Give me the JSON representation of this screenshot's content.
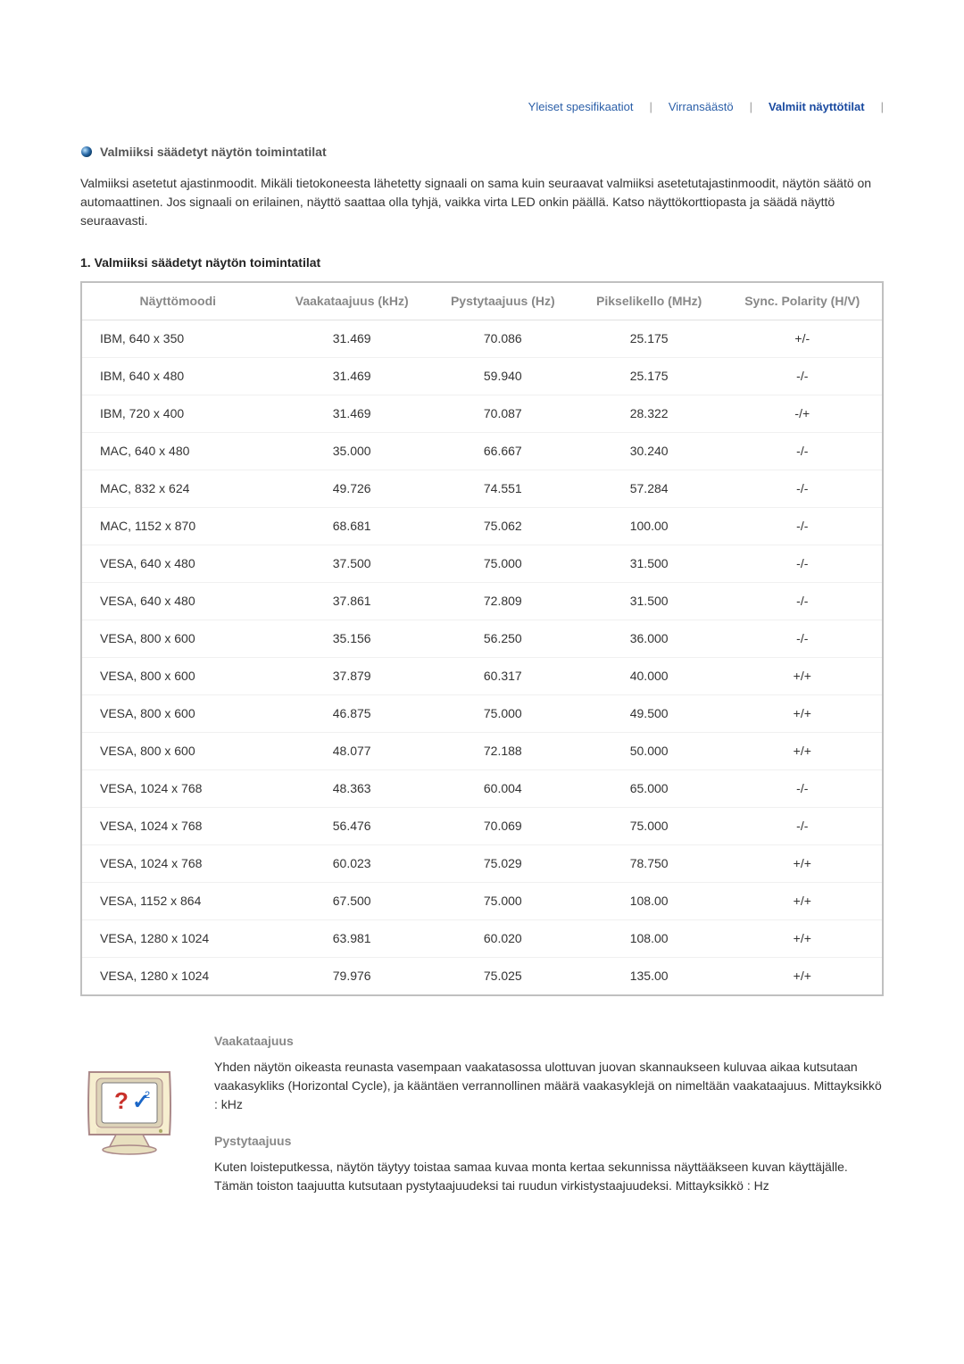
{
  "tabs": {
    "t1": "Yleiset spesifikaatiot",
    "t2": "Virransäästö",
    "t3": "Valmiit näyttötilat"
  },
  "section": {
    "title": "Valmiiksi säädetyt näytön toimintatilat",
    "intro": "Valmiiksi asetetut ajastinmoodit. Mikäli tietokoneesta lähetetty signaali on sama kuin seuraavat valmiiksi asetetutajastinmoodit, näytön säätö on automaattinen. Jos signaali on erilainen, näyttö saattaa olla tyhjä, vaikka virta LED onkin päällä. Katso näyttökorttiopasta ja säädä näyttö seuraavasti."
  },
  "table": {
    "caption": "1. Valmiiksi säädetyt näytön toimintatilat",
    "columns": {
      "mode": "Näyttömoodi",
      "horiz": "Vaakataajuus (kHz)",
      "vert": "Pystytaajuus (Hz)",
      "pixel": "Pikselikello (MHz)",
      "sync": "Sync. Polarity (H/V)"
    },
    "rows": [
      {
        "mode": "IBM, 640 x 350",
        "h": "31.469",
        "v": "70.086",
        "p": "25.175",
        "s": "+/-"
      },
      {
        "mode": "IBM, 640 x 480",
        "h": "31.469",
        "v": "59.940",
        "p": "25.175",
        "s": "-/-"
      },
      {
        "mode": "IBM, 720 x 400",
        "h": "31.469",
        "v": "70.087",
        "p": "28.322",
        "s": "-/+"
      },
      {
        "mode": "MAC, 640 x 480",
        "h": "35.000",
        "v": "66.667",
        "p": "30.240",
        "s": "-/-"
      },
      {
        "mode": "MAC, 832 x 624",
        "h": "49.726",
        "v": "74.551",
        "p": "57.284",
        "s": "-/-"
      },
      {
        "mode": "MAC, 1152 x 870",
        "h": "68.681",
        "v": "75.062",
        "p": "100.00",
        "s": "-/-"
      },
      {
        "mode": "VESA, 640 x 480",
        "h": "37.500",
        "v": "75.000",
        "p": "31.500",
        "s": "-/-"
      },
      {
        "mode": "VESA, 640 x 480",
        "h": "37.861",
        "v": "72.809",
        "p": "31.500",
        "s": "-/-"
      },
      {
        "mode": "VESA, 800 x 600",
        "h": "35.156",
        "v": "56.250",
        "p": "36.000",
        "s": "-/-"
      },
      {
        "mode": "VESA, 800 x 600",
        "h": "37.879",
        "v": "60.317",
        "p": "40.000",
        "s": "+/+"
      },
      {
        "mode": "VESA, 800 x 600",
        "h": "46.875",
        "v": "75.000",
        "p": "49.500",
        "s": "+/+"
      },
      {
        "mode": "VESA, 800 x 600",
        "h": "48.077",
        "v": "72.188",
        "p": "50.000",
        "s": "+/+"
      },
      {
        "mode": "VESA, 1024 x 768",
        "h": "48.363",
        "v": "60.004",
        "p": "65.000",
        "s": "-/-"
      },
      {
        "mode": "VESA, 1024 x 768",
        "h": "56.476",
        "v": "70.069",
        "p": "75.000",
        "s": "-/-"
      },
      {
        "mode": "VESA, 1024 x 768",
        "h": "60.023",
        "v": "75.029",
        "p": "78.750",
        "s": "+/+"
      },
      {
        "mode": "VESA, 1152 x 864",
        "h": "67.500",
        "v": "75.000",
        "p": "108.00",
        "s": "+/+"
      },
      {
        "mode": "VESA, 1280 x 1024",
        "h": "63.981",
        "v": "60.020",
        "p": "108.00",
        "s": "+/+"
      },
      {
        "mode": "VESA, 1280 x 1024",
        "h": "79.976",
        "v": "75.025",
        "p": "135.00",
        "s": "+/+"
      }
    ]
  },
  "terms": {
    "t1_title": "Vaakataajuus",
    "t1_body": "Yhden näytön oikeasta reunasta vasempaan vaakatasossa ulottuvan juovan skannaukseen kuluvaa aikaa kutsutaan vaakasykliks (Horizontal Cycle), ja kääntäen verrannollinen määrä vaakasyklejä on nimeltään vaakataajuus. Mittayksikkö : kHz",
    "t2_title": "Pystytaajuus",
    "t2_body": "Kuten loisteputkessa, näytön täytyy toistaa samaa kuvaa monta kertaa sekunnissa näyttääkseen kuvan käyttäjälle. Tämän toiston taajuutta kutsutaan pystytaajuudeksi tai ruudun virkistystaajuudeksi. Mittayksikkö : Hz"
  },
  "colors": {
    "link": "#2b5fa8",
    "table_border": "#c0c0c0",
    "th_text": "#888888"
  }
}
